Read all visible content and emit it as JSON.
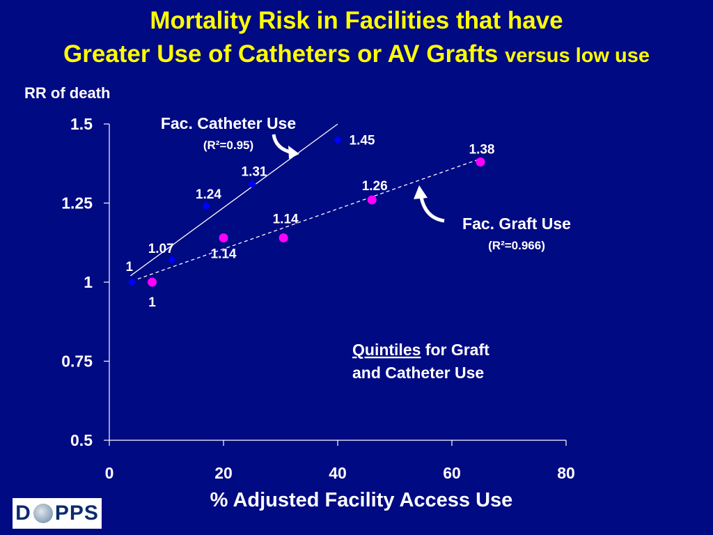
{
  "title": {
    "line1": "Mortality Risk in Facilities that have",
    "line2": "Greater Use of Catheters or AV Grafts",
    "line2_suffix": "versus low use"
  },
  "chart_data": {
    "type": "scatter",
    "ylabel": "RR of death",
    "xlabel": "% Adjusted Facility Access Use",
    "xlim": [
      0,
      80
    ],
    "ylim": [
      0.5,
      1.5
    ],
    "x_ticks": [
      "0",
      "20",
      "40",
      "60",
      "80"
    ],
    "y_ticks": [
      "1.5",
      "1.25",
      "1",
      "0.75",
      "0.5"
    ],
    "series": [
      {
        "name": "Fac. Catheter Use",
        "r2": "(R²=0.95)",
        "color": "#0000ff",
        "marker": "diamond",
        "x": [
          4,
          11,
          17,
          25,
          40
        ],
        "y": [
          1.0,
          1.07,
          1.24,
          1.31,
          1.45
        ],
        "labels": [
          "1",
          "1.07",
          "1.24",
          "1.31",
          "1.45"
        ],
        "trendline": "solid",
        "trend_start": [
          3.7,
          1.02
        ],
        "trend_end": [
          40,
          1.5
        ]
      },
      {
        "name": "Fac. Graft Use",
        "r2": "(R²=0.966)",
        "color": "#ff00ff",
        "marker": "circle",
        "x": [
          7.5,
          20,
          30.5,
          46,
          65
        ],
        "y": [
          1.0,
          1.14,
          1.14,
          1.26,
          1.38
        ],
        "labels": [
          "1",
          "1.14",
          "1.14",
          "1.26",
          "1.38"
        ],
        "trendline": "dashed",
        "trend_start": [
          5,
          1.01
        ],
        "trend_end": [
          65,
          1.39
        ]
      }
    ],
    "annotation": {
      "underlined": "Quintiles",
      "rest1": " for Graft",
      "line2": "and Catheter Use"
    }
  },
  "logo": {
    "left": "D",
    "right": "PPS"
  }
}
